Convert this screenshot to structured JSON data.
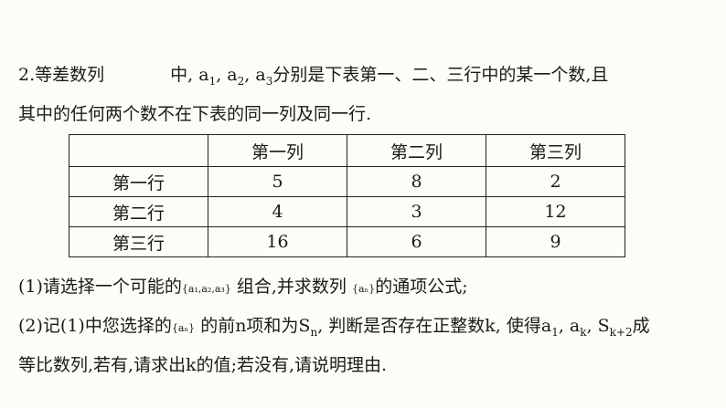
{
  "problem": {
    "line1": {
      "prefix": "2.等差数列",
      "mid": "中, ",
      "a": "a",
      "s1": "1",
      "s2": "2",
      "s3": "3",
      "sep": ", ",
      "suffix": "分别是下表第一、二、三行中的某一个数,且"
    },
    "line2": "其中的任何两个数不在下表的同一列及同一行.",
    "q1": {
      "start": "(1)请选择一个可能的",
      "set": "{a₁,a₂,a₃}",
      "mid": " 组合,并求数列 ",
      "seq": "{aₙ}",
      "end": "的通项公式;"
    },
    "q2": {
      "start": "(2)记(1)中您选择的",
      "seq": "{aₙ}",
      "mid": " 的前n项和为S",
      "n": "n",
      "mid2": ", 判断是否存在正整数k, 使得a",
      "one": "1",
      "comma": ", a",
      "k": "k",
      "comma2": ", S",
      "k2": "k+2",
      "end": "成"
    },
    "q2_line2": "等比数列,若有,请求出k的值;若没有,请说明理由."
  },
  "table": {
    "headers": [
      "",
      "第一列",
      "第二列",
      "第三列"
    ],
    "rows": [
      [
        "第一行",
        "5",
        "8",
        "2"
      ],
      [
        "第二行",
        "4",
        "3",
        "12"
      ],
      [
        "第三行",
        "16",
        "6",
        "9"
      ]
    ]
  }
}
